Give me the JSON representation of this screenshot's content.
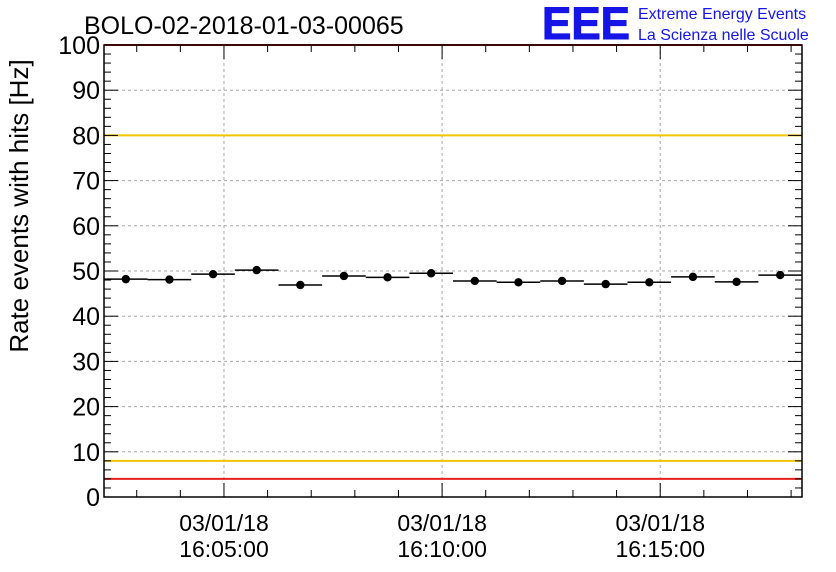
{
  "chart_data": {
    "type": "scatter",
    "title": "BOLO-02-2018-01-03-00065",
    "ylabel": "Rate events with hits [Hz]",
    "xlabel": "",
    "ylim": [
      0,
      100
    ],
    "y_ticks": [
      0,
      10,
      20,
      30,
      40,
      50,
      60,
      70,
      80,
      90,
      100
    ],
    "x_ticks": [
      {
        "date": "03/01/18",
        "time": "16:05:00"
      },
      {
        "date": "03/01/18",
        "time": "16:10:00"
      },
      {
        "date": "03/01/18",
        "time": "16:15:00"
      }
    ],
    "xlim": [
      "16:02:15",
      "16:18:15"
    ],
    "grid": true,
    "legend": "none",
    "series": [
      {
        "marker": "circle",
        "color": "#000000",
        "points": [
          {
            "x": "16:02:45",
            "y": 48.2
          },
          {
            "x": "16:03:45",
            "y": 48.1
          },
          {
            "x": "16:04:45",
            "y": 49.3
          },
          {
            "x": "16:05:45",
            "y": 50.2
          },
          {
            "x": "16:06:45",
            "y": 46.9
          },
          {
            "x": "16:07:45",
            "y": 48.9
          },
          {
            "x": "16:08:45",
            "y": 48.6
          },
          {
            "x": "16:09:45",
            "y": 49.5
          },
          {
            "x": "16:10:45",
            "y": 47.8
          },
          {
            "x": "16:11:45",
            "y": 47.5
          },
          {
            "x": "16:12:45",
            "y": 47.8
          },
          {
            "x": "16:13:45",
            "y": 47.1
          },
          {
            "x": "16:14:45",
            "y": 47.5
          },
          {
            "x": "16:15:45",
            "y": 48.7
          },
          {
            "x": "16:16:45",
            "y": 47.6
          },
          {
            "x": "16:17:45",
            "y": 49.1
          }
        ]
      }
    ],
    "reference_lines": [
      {
        "y": 100,
        "color": "#e8211b"
      },
      {
        "y": 80,
        "color": "#f2c500"
      },
      {
        "y": 8,
        "color": "#f2c500"
      },
      {
        "y": 4,
        "color": "#e8211b"
      }
    ]
  },
  "logo": {
    "text": "EEE",
    "line1": "Extreme Energy Events",
    "line2": "La Scienza nelle Scuole",
    "color": "#1515e6"
  }
}
